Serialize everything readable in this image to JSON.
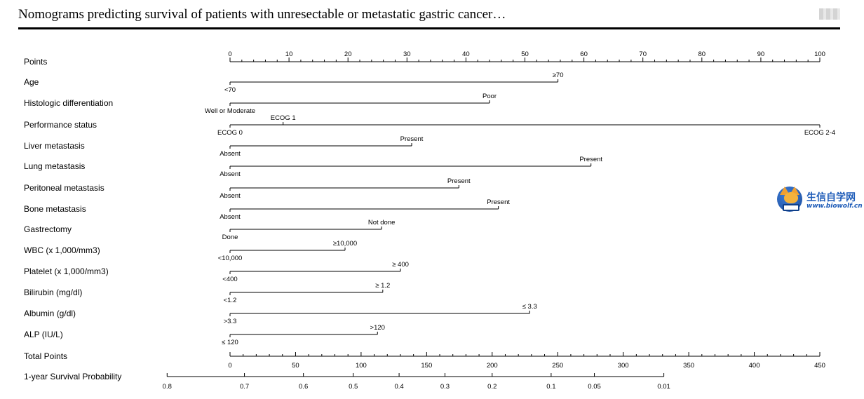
{
  "header": {
    "title": "Nomograms predicting survival of patients with unresectable or metastatic gastric cancer…"
  },
  "watermark": {
    "brand_cn": "生信自学网",
    "url": "www.biowolf.cn",
    "brand_color": "#1d5bb8"
  },
  "chart_data": {
    "type": "nomogram",
    "title": "",
    "points_axis": {
      "label": "Points",
      "range": [
        0,
        100
      ],
      "major_ticks": [
        0,
        10,
        20,
        30,
        40,
        50,
        60,
        70,
        80,
        90,
        100
      ],
      "minor_step": 2
    },
    "variables": [
      {
        "name": "Age",
        "levels": [
          {
            "label": "<70",
            "points": 0,
            "side": "below"
          },
          {
            "label": "≥70",
            "points": 55.6,
            "side": "above"
          }
        ]
      },
      {
        "name": "Histologic differentiation",
        "levels": [
          {
            "label": "Well or Moderate",
            "points": 0,
            "side": "below"
          },
          {
            "label": "Poor",
            "points": 44,
            "side": "above"
          }
        ]
      },
      {
        "name": "Performance status",
        "levels": [
          {
            "label": "ECOG 0",
            "points": 0,
            "side": "below"
          },
          {
            "label": "ECOG 1",
            "points": 9,
            "side": "above"
          },
          {
            "label": "ECOG 2-4",
            "points": 100,
            "side": "below"
          }
        ]
      },
      {
        "name": "Liver metastasis",
        "levels": [
          {
            "label": "Absent",
            "points": 0,
            "side": "below"
          },
          {
            "label": "Present",
            "points": 30.8,
            "side": "above"
          }
        ]
      },
      {
        "name": "Lung metastasis",
        "levels": [
          {
            "label": "Absent",
            "points": 0,
            "side": "below"
          },
          {
            "label": "Present",
            "points": 61.2,
            "side": "above"
          }
        ]
      },
      {
        "name": "Peritoneal metastasis",
        "levels": [
          {
            "label": "Absent",
            "points": 0,
            "side": "below"
          },
          {
            "label": "Present",
            "points": 38.8,
            "side": "above"
          }
        ]
      },
      {
        "name": "Bone metastasis",
        "levels": [
          {
            "label": "Absent",
            "points": 0,
            "side": "below"
          },
          {
            "label": "Present",
            "points": 45.5,
            "side": "above"
          }
        ]
      },
      {
        "name": "Gastrectomy",
        "levels": [
          {
            "label": "Done",
            "points": 0,
            "side": "below"
          },
          {
            "label": "Not done",
            "points": 25.7,
            "side": "above"
          }
        ]
      },
      {
        "name": "WBC (x 1,000/mm3)",
        "levels": [
          {
            "label": "<10,000",
            "points": 0,
            "side": "below"
          },
          {
            "label": "≥10,000",
            "points": 19.5,
            "side": "above"
          }
        ]
      },
      {
        "name": "Platelet (x 1,000/mm3)",
        "levels": [
          {
            "label": "<400",
            "points": 0,
            "side": "below"
          },
          {
            "label": "≥ 400",
            "points": 28.9,
            "side": "above"
          }
        ]
      },
      {
        "name": "Bilirubin (mg/dl)",
        "levels": [
          {
            "label": "<1.2",
            "points": 0,
            "side": "below"
          },
          {
            "label": "≥ 1.2",
            "points": 25.9,
            "side": "above"
          }
        ]
      },
      {
        "name": "Albumin (g/dl)",
        "levels": [
          {
            "label": ">3.3",
            "points": 0,
            "side": "below"
          },
          {
            "label": "≤ 3.3",
            "points": 50.8,
            "side": "above"
          }
        ]
      },
      {
        "name": "ALP (IU/L)",
        "levels": [
          {
            "label": "≤ 120",
            "points": 0,
            "side": "below"
          },
          {
            "label": ">120",
            "points": 25,
            "side": "above"
          }
        ]
      }
    ],
    "total_points_axis": {
      "label": "Total Points",
      "range": [
        0,
        450
      ],
      "major_ticks": [
        0,
        50,
        100,
        150,
        200,
        250,
        300,
        350,
        400,
        450
      ],
      "minor_step": 10
    },
    "survival_axis": {
      "label": "1-year Survival Probability",
      "ticks": [
        {
          "label": "0.8",
          "total_points": -48
        },
        {
          "label": "0.7",
          "total_points": 11
        },
        {
          "label": "0.6",
          "total_points": 56
        },
        {
          "label": "0.5",
          "total_points": 94
        },
        {
          "label": "0.4",
          "total_points": 129
        },
        {
          "label": "0.3",
          "total_points": 164
        },
        {
          "label": "0.2",
          "total_points": 200
        },
        {
          "label": "0.1",
          "total_points": 245
        },
        {
          "label": "0.05",
          "total_points": 278
        },
        {
          "label": "0.01",
          "total_points": 331
        }
      ]
    }
  }
}
